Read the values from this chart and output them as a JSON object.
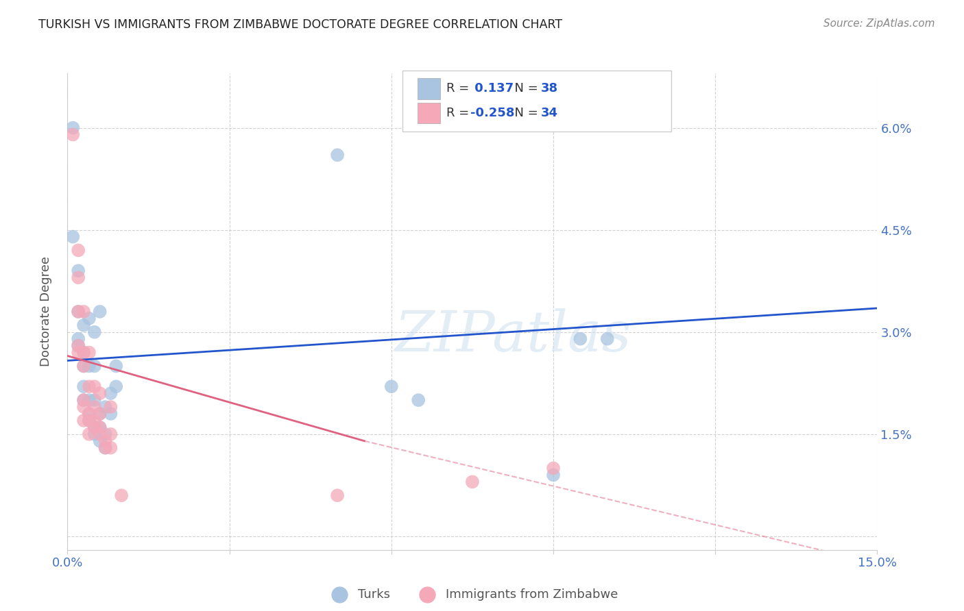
{
  "title": "TURKISH VS IMMIGRANTS FROM ZIMBABWE DOCTORATE DEGREE CORRELATION CHART",
  "source": "Source: ZipAtlas.com",
  "ylabel": "Doctorate Degree",
  "watermark": "ZIPatlas",
  "xlim": [
    0.0,
    0.15
  ],
  "ylim": [
    -0.002,
    0.068
  ],
  "xticks": [
    0.0,
    0.03,
    0.06,
    0.09,
    0.12,
    0.15
  ],
  "yticks": [
    0.0,
    0.015,
    0.03,
    0.045,
    0.06
  ],
  "blue_R": 0.137,
  "blue_N": 38,
  "pink_R": -0.258,
  "pink_N": 34,
  "blue_color": "#a8c4e0",
  "pink_color": "#f4a8b8",
  "blue_line_color": "#2255cc",
  "pink_line_color": "#e06080",
  "legend_label_blue": "Turks",
  "legend_label_pink": "Immigrants from Zimbabwe",
  "blue_scatter": [
    [
      0.001,
      0.06
    ],
    [
      0.001,
      0.044
    ],
    [
      0.002,
      0.039
    ],
    [
      0.002,
      0.029
    ],
    [
      0.002,
      0.033
    ],
    [
      0.002,
      0.028
    ],
    [
      0.003,
      0.031
    ],
    [
      0.003,
      0.027
    ],
    [
      0.003,
      0.025
    ],
    [
      0.003,
      0.022
    ],
    [
      0.003,
      0.02
    ],
    [
      0.004,
      0.032
    ],
    [
      0.004,
      0.025
    ],
    [
      0.004,
      0.02
    ],
    [
      0.004,
      0.018
    ],
    [
      0.004,
      0.017
    ],
    [
      0.005,
      0.03
    ],
    [
      0.005,
      0.025
    ],
    [
      0.005,
      0.02
    ],
    [
      0.005,
      0.016
    ],
    [
      0.005,
      0.015
    ],
    [
      0.006,
      0.033
    ],
    [
      0.006,
      0.018
    ],
    [
      0.006,
      0.016
    ],
    [
      0.006,
      0.014
    ],
    [
      0.007,
      0.019
    ],
    [
      0.007,
      0.015
    ],
    [
      0.007,
      0.013
    ],
    [
      0.008,
      0.021
    ],
    [
      0.008,
      0.018
    ],
    [
      0.009,
      0.025
    ],
    [
      0.009,
      0.022
    ],
    [
      0.05,
      0.056
    ],
    [
      0.06,
      0.022
    ],
    [
      0.065,
      0.02
    ],
    [
      0.09,
      0.009
    ],
    [
      0.095,
      0.029
    ],
    [
      0.1,
      0.029
    ]
  ],
  "pink_scatter": [
    [
      0.001,
      0.059
    ],
    [
      0.002,
      0.042
    ],
    [
      0.002,
      0.038
    ],
    [
      0.002,
      0.033
    ],
    [
      0.002,
      0.028
    ],
    [
      0.002,
      0.027
    ],
    [
      0.003,
      0.033
    ],
    [
      0.003,
      0.027
    ],
    [
      0.003,
      0.025
    ],
    [
      0.003,
      0.02
    ],
    [
      0.003,
      0.019
    ],
    [
      0.003,
      0.017
    ],
    [
      0.004,
      0.027
    ],
    [
      0.004,
      0.022
    ],
    [
      0.004,
      0.018
    ],
    [
      0.004,
      0.017
    ],
    [
      0.004,
      0.015
    ],
    [
      0.005,
      0.022
    ],
    [
      0.005,
      0.019
    ],
    [
      0.005,
      0.017
    ],
    [
      0.005,
      0.016
    ],
    [
      0.006,
      0.021
    ],
    [
      0.006,
      0.018
    ],
    [
      0.006,
      0.016
    ],
    [
      0.006,
      0.015
    ],
    [
      0.007,
      0.014
    ],
    [
      0.007,
      0.013
    ],
    [
      0.008,
      0.019
    ],
    [
      0.008,
      0.015
    ],
    [
      0.008,
      0.013
    ],
    [
      0.01,
      0.006
    ],
    [
      0.05,
      0.006
    ],
    [
      0.075,
      0.008
    ],
    [
      0.09,
      0.01
    ]
  ],
  "blue_trendline": [
    [
      0.0,
      0.0258
    ],
    [
      0.15,
      0.0335
    ]
  ],
  "pink_trendline_solid": [
    [
      0.0,
      0.0265
    ],
    [
      0.055,
      0.014
    ]
  ],
  "pink_trendline_dash": [
    [
      0.055,
      0.014
    ],
    [
      0.15,
      -0.004
    ]
  ],
  "background_color": "#ffffff",
  "grid_color": "#cccccc",
  "title_color": "#222222",
  "tick_label_color": "#4472c4"
}
